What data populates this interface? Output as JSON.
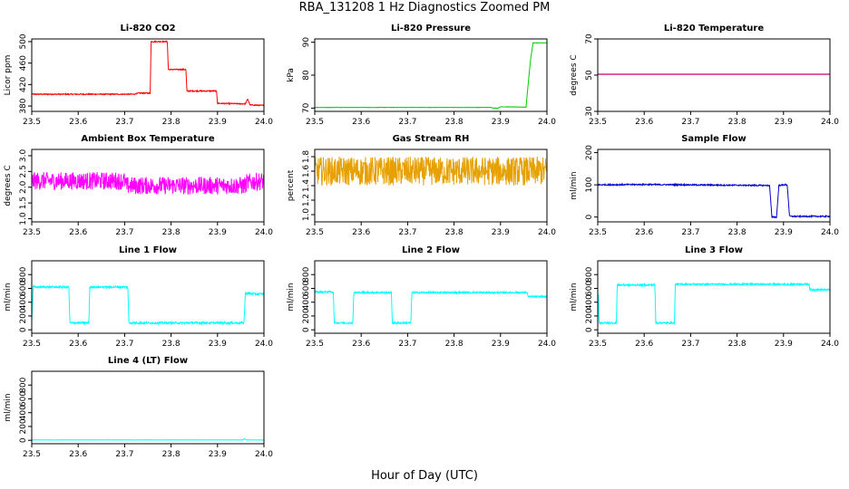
{
  "figure": {
    "title": "RBA_131208  1 Hz Diagnostics Zoomed PM",
    "xlabel": "Hour of Day (UTC)"
  },
  "chart_data": [
    {
      "type": "line",
      "title": "Li-820 CO2",
      "ylabel": "Licor ppm",
      "xlim": [
        23.5,
        24.0
      ],
      "ylim": [
        370,
        505
      ],
      "xticks": [
        "23.5",
        "23.6",
        "23.7",
        "23.8",
        "23.9",
        "24.0"
      ],
      "yticks": [
        "380",
        "420",
        "460",
        "500"
      ],
      "series": [
        {
          "color": "#ff0000",
          "noise": 1,
          "x": [
            23.5,
            23.72,
            23.73,
            23.755,
            23.757,
            23.792,
            23.794,
            23.832,
            23.834,
            23.898,
            23.9,
            23.96,
            23.965,
            23.97,
            24.0
          ],
          "y": [
            402,
            402,
            404,
            404,
            500,
            500,
            448,
            448,
            408,
            408,
            385,
            384,
            393,
            382,
            381
          ]
        }
      ]
    },
    {
      "type": "line",
      "title": "Li-820 Pressure",
      "ylabel": "kPa",
      "xlim": [
        23.5,
        24.0
      ],
      "ylim": [
        69,
        91
      ],
      "xticks": [
        "23.5",
        "23.6",
        "23.7",
        "23.8",
        "23.9",
        "24.0"
      ],
      "yticks": [
        "70",
        "80",
        "90"
      ],
      "series": [
        {
          "color": "#00cc00",
          "noise": 0.05,
          "x": [
            23.5,
            23.88,
            23.885,
            23.895,
            23.9,
            23.955,
            23.96,
            23.965,
            23.97,
            24.0
          ],
          "y": [
            70.2,
            70.2,
            70.0,
            70.0,
            70.4,
            70.3,
            78,
            85,
            89.8,
            89.8
          ]
        }
      ]
    },
    {
      "type": "line",
      "title": "Li-820 Temperature",
      "ylabel": "degrees C",
      "xlim": [
        23.5,
        24.0
      ],
      "ylim": [
        30,
        70
      ],
      "xticks": [
        "23.5",
        "23.6",
        "23.7",
        "23.8",
        "23.9",
        "24.0"
      ],
      "yticks": [
        "30",
        "50",
        "70"
      ],
      "series": [
        {
          "color": "#cc0066",
          "noise": 0,
          "x": [
            23.5,
            24.0
          ],
          "y": [
            50.5,
            50.5
          ]
        }
      ]
    },
    {
      "type": "line",
      "title": "Ambient Box Temperature",
      "ylabel": "degrees C",
      "xlim": [
        23.5,
        24.0
      ],
      "ylim": [
        0.9,
        3.2
      ],
      "xticks": [
        "23.5",
        "23.6",
        "23.7",
        "23.8",
        "23.9",
        "24.0"
      ],
      "yticks": [
        "1.0",
        "1.5",
        "2.0",
        "2.5",
        "3.0"
      ],
      "series": [
        {
          "color": "#ff00ff",
          "noise": 0.28,
          "x": [
            23.5,
            23.7,
            23.703,
            23.96,
            23.963,
            24.0
          ],
          "y": [
            2.2,
            2.2,
            2.05,
            2.05,
            2.15,
            2.2
          ]
        }
      ]
    },
    {
      "type": "line",
      "title": "Gas Stream RH",
      "ylabel": "percent",
      "xlim": [
        23.5,
        24.0
      ],
      "ylim": [
        0.9,
        1.9
      ],
      "xticks": [
        "23.5",
        "23.6",
        "23.7",
        "23.8",
        "23.9",
        "24.0"
      ],
      "yticks": [
        "1.0",
        "1.2",
        "1.4",
        "1.6",
        "1.8"
      ],
      "series": [
        {
          "color": "#e6a000",
          "noise": 0.2,
          "x": [
            23.5,
            24.0
          ],
          "y": [
            1.6,
            1.6
          ]
        }
      ]
    },
    {
      "type": "line",
      "title": "Sample Flow",
      "ylabel": "ml/min",
      "xlim": [
        23.5,
        24.0
      ],
      "ylim": [
        -15,
        210
      ],
      "xticks": [
        "23.5",
        "23.6",
        "23.7",
        "23.8",
        "23.9",
        "24.0"
      ],
      "yticks": [
        "0",
        "100",
        "200"
      ],
      "series": [
        {
          "color": "#0000cc",
          "noise": 2,
          "x": [
            23.5,
            23.6,
            23.87,
            23.875,
            23.885,
            23.89,
            23.9,
            23.908,
            23.913,
            24.0
          ],
          "y": [
            100,
            101,
            98,
            0,
            0,
            98,
            100,
            100,
            2,
            2
          ]
        }
      ]
    },
    {
      "type": "line",
      "title": "Line 1 Flow",
      "ylabel": "ml/min",
      "xlim": [
        23.5,
        24.0
      ],
      "ylim": [
        -50,
        1000
      ],
      "xticks": [
        "23.5",
        "23.6",
        "23.7",
        "23.8",
        "23.9",
        "24.0"
      ],
      "yticks": [
        "0",
        "200",
        "400",
        "600",
        "800"
      ],
      "series": [
        {
          "color": "#00ffff",
          "noise": 15,
          "x": [
            23.5,
            23.503,
            23.58,
            23.582,
            23.623,
            23.625,
            23.707,
            23.709,
            23.957,
            23.96,
            23.98,
            24.0
          ],
          "y": [
            120,
            620,
            620,
            100,
            100,
            620,
            620,
            100,
            100,
            530,
            520,
            520
          ]
        }
      ]
    },
    {
      "type": "line",
      "title": "Line 2 Flow",
      "ylabel": "ml/min",
      "xlim": [
        23.5,
        24.0
      ],
      "ylim": [
        -50,
        1000
      ],
      "xticks": [
        "23.5",
        "23.6",
        "23.7",
        "23.8",
        "23.9",
        "24.0"
      ],
      "yticks": [
        "0",
        "200",
        "400",
        "600",
        "800"
      ],
      "series": [
        {
          "color": "#00ffff",
          "noise": 12,
          "x": [
            23.5,
            23.54,
            23.542,
            23.582,
            23.584,
            23.665,
            23.667,
            23.707,
            23.709,
            23.957,
            23.96,
            24.0
          ],
          "y": [
            550,
            550,
            100,
            100,
            540,
            540,
            100,
            100,
            540,
            540,
            480,
            480
          ]
        }
      ]
    },
    {
      "type": "line",
      "title": "Line 3 Flow",
      "ylabel": "ml/min",
      "xlim": [
        23.5,
        24.0
      ],
      "ylim": [
        -50,
        1000
      ],
      "xticks": [
        "23.5",
        "23.6",
        "23.7",
        "23.8",
        "23.9",
        "24.0"
      ],
      "yticks": [
        "0",
        "200",
        "400",
        "600",
        "800"
      ],
      "series": [
        {
          "color": "#00ffff",
          "noise": 12,
          "x": [
            23.5,
            23.501,
            23.503,
            23.54,
            23.542,
            23.623,
            23.625,
            23.665,
            23.667,
            23.955,
            23.957,
            24.0
          ],
          "y": [
            100,
            620,
            100,
            100,
            650,
            650,
            100,
            100,
            660,
            660,
            580,
            580
          ]
        }
      ]
    },
    {
      "type": "line",
      "title": "Line 4 (LT) Flow",
      "ylabel": "ml/min",
      "xlim": [
        23.5,
        24.0
      ],
      "ylim": [
        -50,
        1000
      ],
      "xticks": [
        "23.5",
        "23.6",
        "23.7",
        "23.8",
        "23.9",
        "24.0"
      ],
      "yticks": [
        "0",
        "200",
        "400",
        "600",
        "800"
      ],
      "series": [
        {
          "color": "#00ffff",
          "noise": 2,
          "x": [
            23.5,
            23.955,
            23.958,
            23.962,
            24.0
          ],
          "y": [
            5,
            5,
            25,
            5,
            5
          ]
        }
      ]
    }
  ]
}
